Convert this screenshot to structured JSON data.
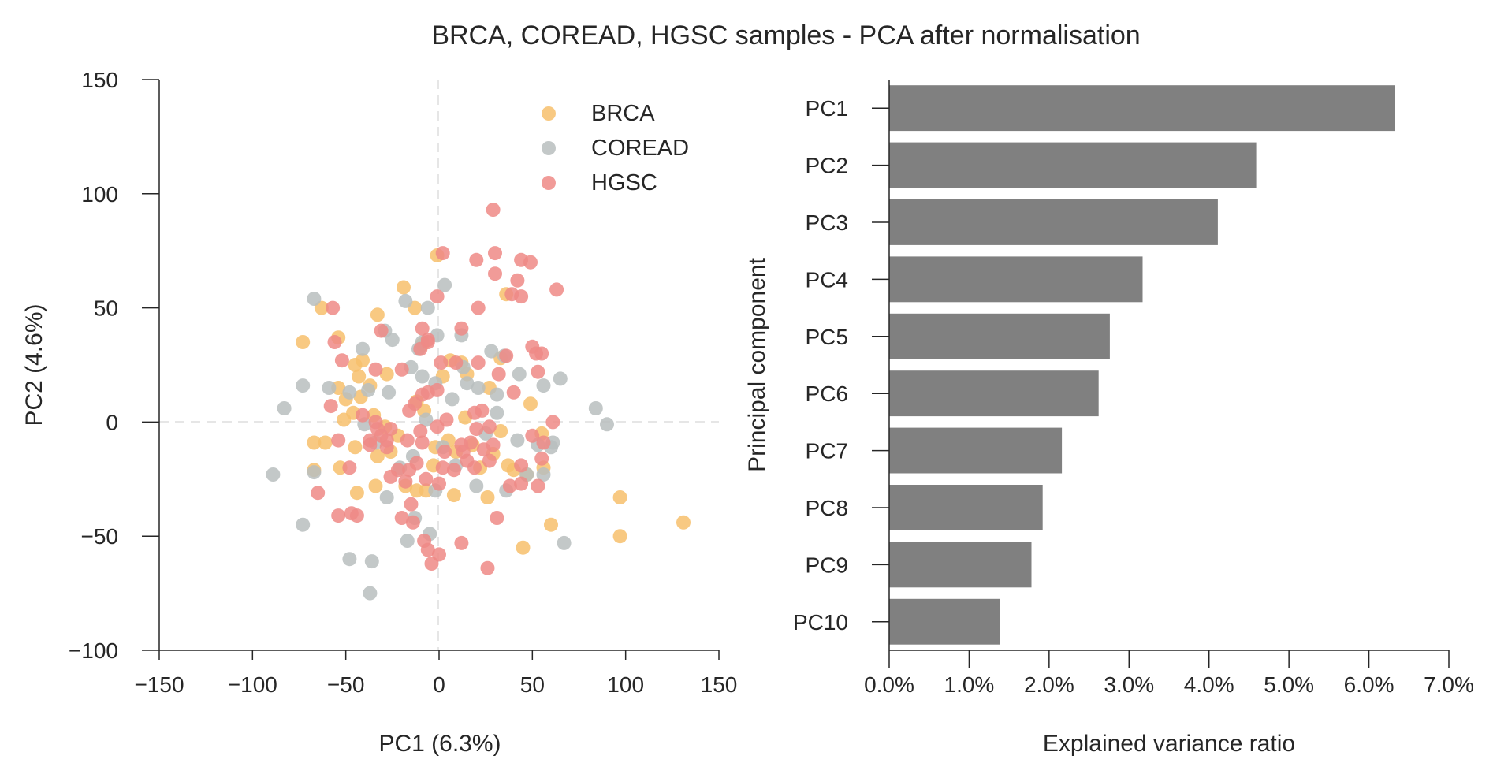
{
  "figure_title": "BRCA, COREAD, HGSC samples - PCA after normalisation",
  "colors": {
    "BRCA": "#f7bf6c",
    "COREAD": "#b9bebe",
    "HGSC": "#ef8a86",
    "bar": "#808080",
    "axis": "#262626",
    "refline": "#dddddd"
  },
  "chart_data": [
    {
      "type": "scatter",
      "title": "",
      "xlabel": "PC1 (6.3%)",
      "ylabel": "PC2 (4.6%)",
      "xlim": [
        -150,
        150
      ],
      "ylim": [
        -100,
        150
      ],
      "xticks": [
        -150,
        -100,
        -50,
        0,
        50,
        100,
        150
      ],
      "xtick_labels": [
        "−150",
        "−100",
        "−50",
        "0",
        "50",
        "100",
        "150"
      ],
      "yticks": [
        150,
        100,
        50,
        0,
        -50,
        -100
      ],
      "ytick_labels": [
        "150",
        "100",
        "50",
        "0",
        "−50",
        "−100"
      ],
      "grid": false,
      "reference_lines": {
        "x": 0,
        "y": 0
      },
      "legend": {
        "position": "top-right",
        "entries": [
          "BRCA",
          "COREAD",
          "HGSC"
        ]
      },
      "series": [
        {
          "name": "BRCA",
          "points": [
            [
              -73,
              35
            ],
            [
              -63,
              50
            ],
            [
              -54,
              37
            ],
            [
              -45,
              25
            ],
            [
              -41,
              27
            ],
            [
              -43,
              20
            ],
            [
              -33,
              47
            ],
            [
              -28,
              21
            ],
            [
              -19,
              59
            ],
            [
              -13,
              50
            ],
            [
              -37,
              16
            ],
            [
              -54,
              15
            ],
            [
              -42,
              11
            ],
            [
              -46,
              4
            ],
            [
              -51,
              1
            ],
            [
              -35,
              3
            ],
            [
              -29,
              -2
            ],
            [
              -45,
              -11
            ],
            [
              -33,
              -15
            ],
            [
              -53,
              -20
            ],
            [
              -67,
              -21
            ],
            [
              -67,
              -9
            ],
            [
              -44,
              -31
            ],
            [
              -34,
              -28
            ],
            [
              -18,
              -28
            ],
            [
              -12,
              -30
            ],
            [
              -2,
              -11
            ],
            [
              -7,
              -30
            ],
            [
              -1,
              73
            ],
            [
              6,
              27
            ],
            [
              5,
              -8
            ],
            [
              8,
              -32
            ],
            [
              12,
              26
            ],
            [
              18,
              -10
            ],
            [
              22,
              -20
            ],
            [
              26,
              -33
            ],
            [
              33,
              -4
            ],
            [
              36,
              56
            ],
            [
              37,
              -19
            ],
            [
              40,
              -21
            ],
            [
              49,
              8
            ],
            [
              55,
              -5
            ],
            [
              56,
              -20
            ],
            [
              60,
              -45
            ],
            [
              45,
              -55
            ],
            [
              97,
              -33
            ],
            [
              97,
              -50
            ],
            [
              131,
              -44
            ],
            [
              -12,
              9
            ],
            [
              -22,
              -6
            ],
            [
              14,
              2
            ],
            [
              27,
              15
            ],
            [
              2,
              20
            ],
            [
              -9,
              34
            ],
            [
              29,
              -14
            ],
            [
              -3,
              -19
            ],
            [
              9,
              -13
            ],
            [
              47,
              -23
            ],
            [
              -50,
              10
            ],
            [
              -61,
              -9
            ],
            [
              33,
              28
            ],
            [
              -26,
              -13
            ],
            [
              15,
              21
            ],
            [
              -8,
              5
            ]
          ]
        },
        {
          "name": "COREAD",
          "points": [
            [
              -67,
              54
            ],
            [
              -73,
              16
            ],
            [
              -59,
              15
            ],
            [
              -83,
              6
            ],
            [
              -89,
              -23
            ],
            [
              -73,
              -45
            ],
            [
              -67,
              -22
            ],
            [
              -48,
              -60
            ],
            [
              -36,
              -61
            ],
            [
              -37,
              -75
            ],
            [
              -41,
              32
            ],
            [
              -38,
              14
            ],
            [
              -29,
              40
            ],
            [
              -25,
              36
            ],
            [
              -18,
              53
            ],
            [
              -6,
              50
            ],
            [
              3,
              60
            ],
            [
              -1,
              38
            ],
            [
              -9,
              35
            ],
            [
              -11,
              32
            ],
            [
              12,
              38
            ],
            [
              28,
              31
            ],
            [
              35,
              29
            ],
            [
              43,
              21
            ],
            [
              56,
              16
            ],
            [
              65,
              19
            ],
            [
              84,
              6
            ],
            [
              90,
              -1
            ],
            [
              61,
              -9
            ],
            [
              53,
              -10
            ],
            [
              60,
              -11
            ],
            [
              56,
              -23
            ],
            [
              47,
              -23
            ],
            [
              67,
              -53
            ],
            [
              -5,
              -49
            ],
            [
              -13,
              -42
            ],
            [
              -17,
              -52
            ],
            [
              -28,
              -33
            ],
            [
              -34,
              -9
            ],
            [
              -14,
              -15
            ],
            [
              2,
              -11
            ],
            [
              -7,
              1
            ],
            [
              -9,
              20
            ],
            [
              -27,
              13
            ],
            [
              -40,
              -1
            ],
            [
              -48,
              13
            ],
            [
              13,
              24
            ],
            [
              21,
              15
            ],
            [
              31,
              4
            ],
            [
              42,
              -8
            ],
            [
              25,
              -5
            ],
            [
              7,
              10
            ],
            [
              20,
              -28
            ],
            [
              -2,
              -30
            ],
            [
              15,
              17
            ],
            [
              -2,
              17
            ],
            [
              9,
              -19
            ],
            [
              31,
              12
            ],
            [
              -21,
              -20
            ],
            [
              36,
              -30
            ],
            [
              -15,
              24
            ]
          ]
        },
        {
          "name": "HGSC",
          "points": [
            [
              29,
              93
            ],
            [
              2,
              74
            ],
            [
              20,
              71
            ],
            [
              30,
              74
            ],
            [
              44,
              71
            ],
            [
              49,
              70
            ],
            [
              30,
              65
            ],
            [
              42,
              62
            ],
            [
              63,
              58
            ],
            [
              39,
              56
            ],
            [
              44,
              55
            ],
            [
              -1,
              55
            ],
            [
              21,
              50
            ],
            [
              -9,
              41
            ],
            [
              -6,
              35
            ],
            [
              12,
              41
            ],
            [
              -31,
              40
            ],
            [
              -56,
              35
            ],
            [
              -52,
              27
            ],
            [
              -34,
              23
            ],
            [
              -20,
              23
            ],
            [
              -10,
              32
            ],
            [
              -6,
              36
            ],
            [
              1,
              26
            ],
            [
              9,
              26
            ],
            [
              21,
              26
            ],
            [
              32,
              21
            ],
            [
              36,
              29
            ],
            [
              50,
              33
            ],
            [
              52,
              30
            ],
            [
              55,
              30
            ],
            [
              53,
              22
            ],
            [
              -57,
              50
            ],
            [
              -58,
              7
            ],
            [
              -54,
              -8
            ],
            [
              -48,
              -20
            ],
            [
              -54,
              -41
            ],
            [
              -44,
              -41
            ],
            [
              -65,
              -31
            ],
            [
              -47,
              -40
            ],
            [
              -37,
              -10
            ],
            [
              -34,
              0
            ],
            [
              -37,
              -8
            ],
            [
              -28,
              -8
            ],
            [
              -31,
              -6
            ],
            [
              -26,
              -24
            ],
            [
              -18,
              -26
            ],
            [
              -20,
              -42
            ],
            [
              -14,
              -44
            ],
            [
              -15,
              -36
            ],
            [
              -8,
              -52
            ],
            [
              -6,
              -56
            ],
            [
              -4,
              -62
            ],
            [
              0,
              -58
            ],
            [
              12,
              -53
            ],
            [
              0,
              -27
            ],
            [
              8,
              -21
            ],
            [
              3,
              -13
            ],
            [
              12,
              -10
            ],
            [
              17,
              -9
            ],
            [
              19,
              -20
            ],
            [
              20,
              -3
            ],
            [
              27,
              -2
            ],
            [
              24,
              -12
            ],
            [
              27,
              -17
            ],
            [
              38,
              -28
            ],
            [
              26,
              -64
            ],
            [
              31,
              -42
            ],
            [
              44,
              -27
            ],
            [
              44,
              -19
            ],
            [
              53,
              -28
            ],
            [
              55,
              -16
            ],
            [
              61,
              0
            ],
            [
              56,
              -9
            ],
            [
              50,
              -6
            ],
            [
              40,
              13
            ],
            [
              -13,
              8
            ],
            [
              -9,
              12
            ],
            [
              -6,
              13
            ],
            [
              -1,
              14
            ],
            [
              -16,
              5
            ],
            [
              -26,
              -3
            ],
            [
              -17,
              -8
            ],
            [
              -22,
              -21
            ],
            [
              -9,
              -9
            ],
            [
              4,
              1
            ],
            [
              15,
              -17
            ],
            [
              19,
              4
            ],
            [
              -1,
              -2
            ],
            [
              -10,
              -4
            ],
            [
              -7,
              -25
            ],
            [
              13,
              -13
            ],
            [
              -41,
              3
            ],
            [
              -33,
              -3
            ],
            [
              -28,
              -11
            ],
            [
              -12,
              -18
            ],
            [
              -16,
              -21
            ],
            [
              2,
              -20
            ],
            [
              23,
              5
            ],
            [
              29,
              -10
            ]
          ]
        }
      ]
    },
    {
      "type": "bar",
      "orientation": "horizontal",
      "title": "",
      "xlabel": "Explained variance ratio",
      "ylabel": "Principal component",
      "xlim": [
        0.0,
        7.0
      ],
      "xticks": [
        0,
        1,
        2,
        3,
        4,
        5,
        6,
        7
      ],
      "xtick_labels": [
        "0.0%",
        "1.0%",
        "2.0%",
        "3.0%",
        "4.0%",
        "5.0%",
        "6.0%",
        "7.0%"
      ],
      "categories": [
        "PC1",
        "PC2",
        "PC3",
        "PC4",
        "PC5",
        "PC6",
        "PC7",
        "PC8",
        "PC9",
        "PC10"
      ],
      "values": [
        6.33,
        4.59,
        4.11,
        3.17,
        2.76,
        2.62,
        2.16,
        1.92,
        1.78,
        1.39
      ],
      "value_unit": "%",
      "grid": false
    }
  ]
}
